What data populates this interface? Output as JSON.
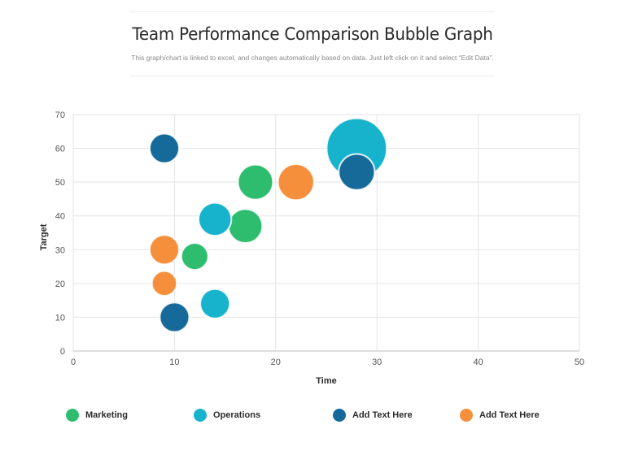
{
  "title": "Team Performance Comparison Bubble Graph",
  "subtitle": "This graph/chart is linked to excel, and changes automatically based on data. Just left click on it and select “Edit Data”.",
  "chart_data": {
    "type": "scatter",
    "xlabel": "Time",
    "ylabel": "Target",
    "xlim": [
      0,
      50
    ],
    "ylim": [
      0,
      70
    ],
    "xticks": [
      0,
      10,
      20,
      30,
      40,
      50
    ],
    "yticks": [
      0,
      10,
      20,
      30,
      40,
      50,
      60,
      70
    ],
    "grid": true,
    "legend_position": "bottom",
    "series": [
      {
        "name": "Marketing",
        "color": "#2ebd6e",
        "points": [
          {
            "x": 12,
            "y": 28,
            "size": 1.0
          },
          {
            "x": 17,
            "y": 37,
            "size": 1.6
          },
          {
            "x": 18,
            "y": 50,
            "size": 1.7
          }
        ]
      },
      {
        "name": "Operations",
        "color": "#17b3cc",
        "points": [
          {
            "x": 14,
            "y": 14,
            "size": 1.2
          },
          {
            "x": 14,
            "y": 39,
            "size": 1.5
          },
          {
            "x": 28,
            "y": 60,
            "size": 5.0
          }
        ]
      },
      {
        "name": "Add Text Here",
        "color": "#156a9a",
        "points": [
          {
            "x": 9,
            "y": 60,
            "size": 1.2
          },
          {
            "x": 10,
            "y": 10,
            "size": 1.2
          },
          {
            "x": 28,
            "y": 53,
            "size": 1.8
          }
        ]
      },
      {
        "name": "Add Text Here",
        "color": "#f58f3c",
        "points": [
          {
            "x": 9,
            "y": 20,
            "size": 0.85
          },
          {
            "x": 9,
            "y": 30,
            "size": 1.2
          },
          {
            "x": 22,
            "y": 50,
            "size": 1.8
          }
        ]
      }
    ]
  }
}
